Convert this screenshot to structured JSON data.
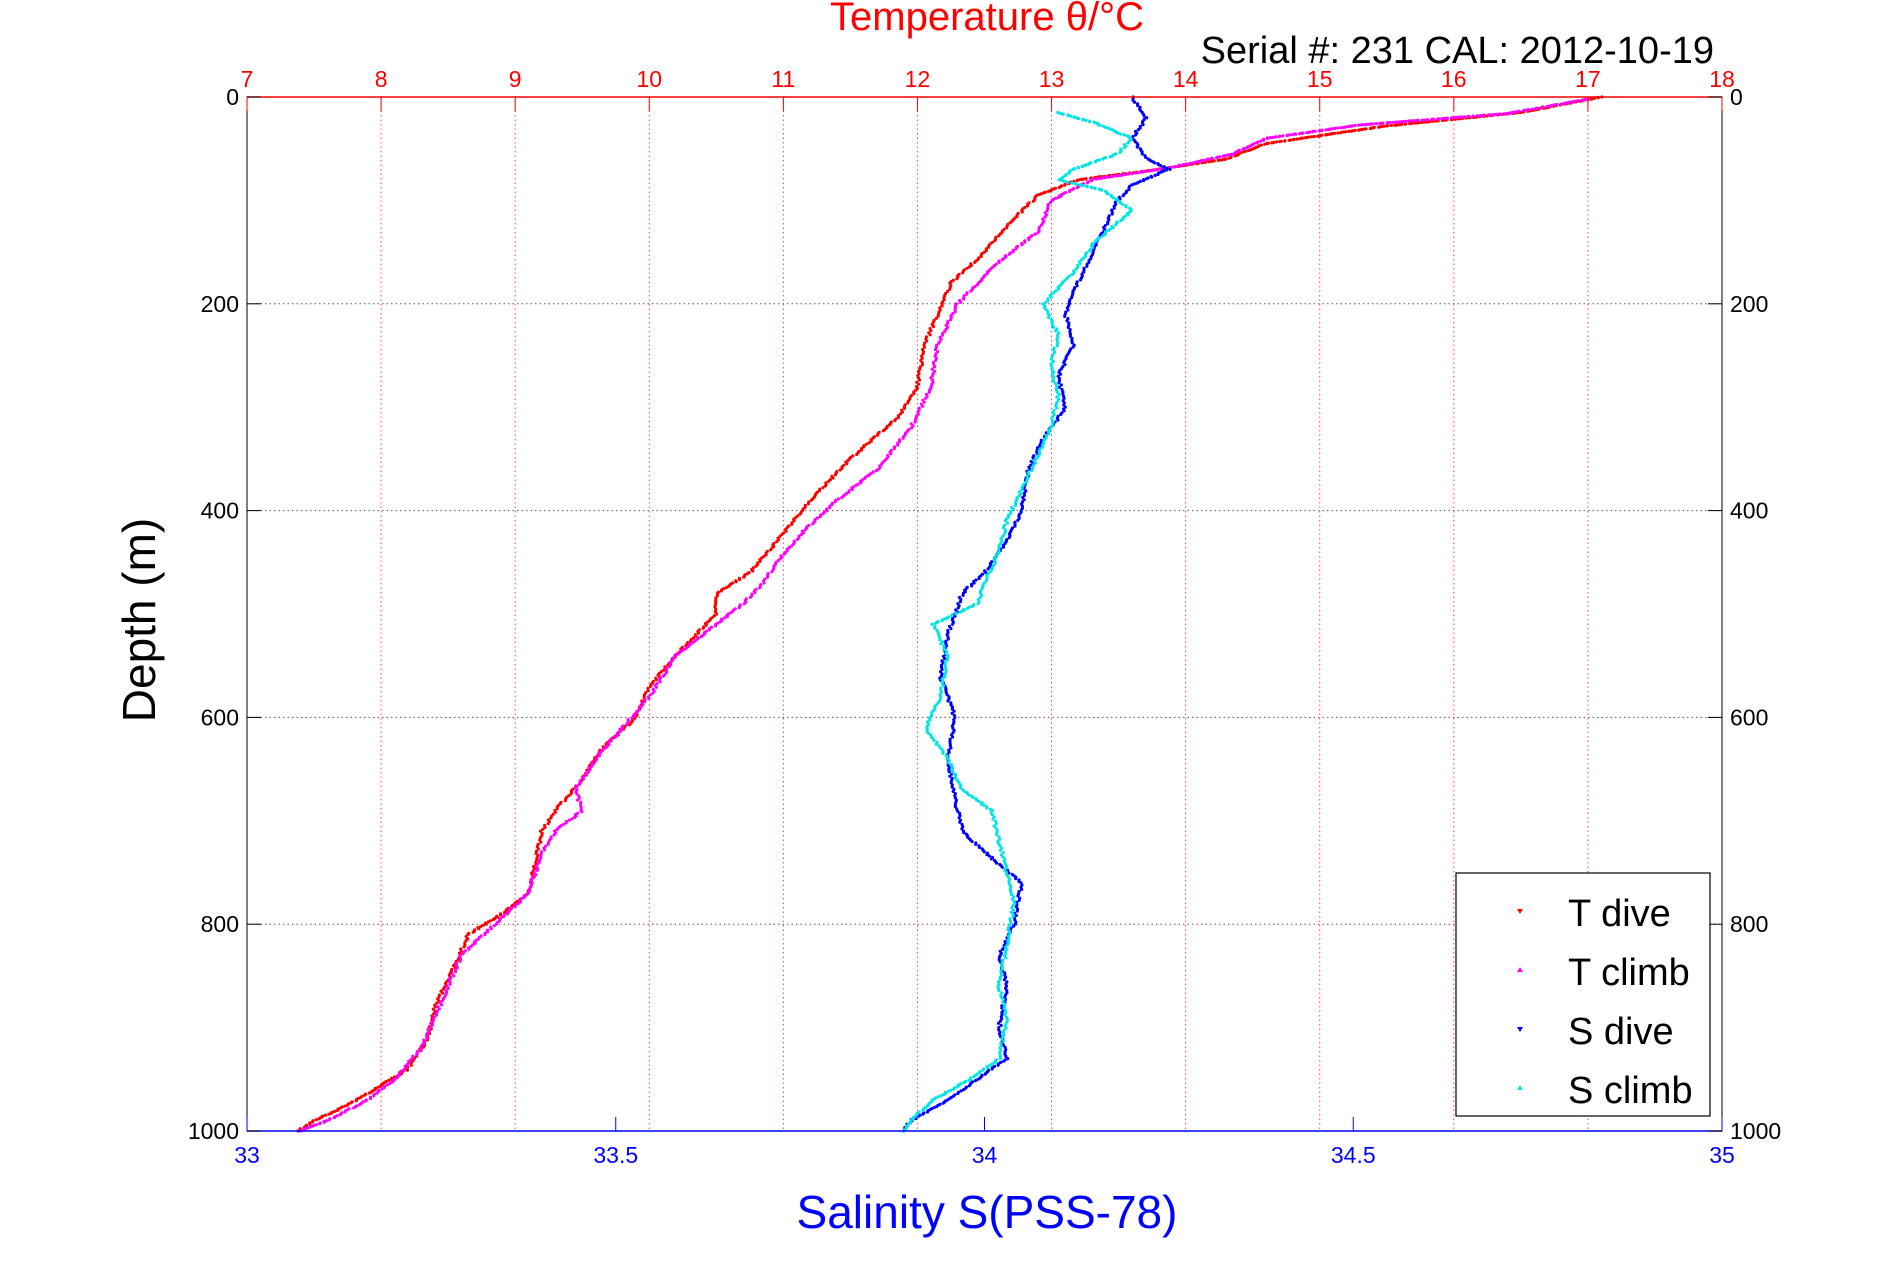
{
  "chart_data": {
    "type": "scatter",
    "title": "Temperature θ/°C",
    "subtitle": "Serial #: 231  CAL: 2012-10-19",
    "xlabel": "Salinity S(PSS-78)",
    "ylabel": "Depth (m)",
    "x_top_label": "Temperature θ/°C",
    "xlim": [
      33,
      35
    ],
    "xlim_top": [
      7,
      18
    ],
    "ylim": [
      1000,
      0
    ],
    "y_reversed": true,
    "grid": true,
    "legend_position": "bottom-right",
    "x_ticks": [
      "33",
      "33.5",
      "34",
      "34.5",
      "35"
    ],
    "x_top_ticks": [
      "7",
      "8",
      "9",
      "10",
      "11",
      "12",
      "13",
      "14",
      "15",
      "16",
      "17",
      "18"
    ],
    "y_ticks": [
      "0",
      "200",
      "400",
      "600",
      "800",
      "1000"
    ],
    "colors": {
      "temperature_axis": "#ff0000",
      "salinity_axis": "#0000ff",
      "t_dive": "#ff0000",
      "t_climb": "#ff00ff",
      "s_dive": "#0000ff",
      "s_climb": "#00e5e5"
    },
    "series": [
      {
        "name": "T dive",
        "axis": "temperature",
        "color": "#ff0000",
        "points": [
          [
            17.1,
            0
          ],
          [
            16.5,
            15
          ],
          [
            15.5,
            28
          ],
          [
            14.6,
            45
          ],
          [
            14.3,
            60
          ],
          [
            13.8,
            70
          ],
          [
            13.2,
            80
          ],
          [
            12.9,
            95
          ],
          [
            12.7,
            120
          ],
          [
            12.5,
            150
          ],
          [
            12.25,
            180
          ],
          [
            12.15,
            210
          ],
          [
            12.05,
            240
          ],
          [
            12.0,
            280
          ],
          [
            11.85,
            310
          ],
          [
            11.5,
            350
          ],
          [
            11.2,
            390
          ],
          [
            10.95,
            430
          ],
          [
            10.75,
            460
          ],
          [
            10.5,
            480
          ],
          [
            10.5,
            500
          ],
          [
            10.2,
            540
          ],
          [
            10.0,
            570
          ],
          [
            9.9,
            600
          ],
          [
            9.65,
            630
          ],
          [
            9.5,
            660
          ],
          [
            9.3,
            690
          ],
          [
            9.2,
            710
          ],
          [
            9.15,
            740
          ],
          [
            9.1,
            770
          ],
          [
            8.9,
            790
          ],
          [
            8.65,
            810
          ],
          [
            8.55,
            840
          ],
          [
            8.4,
            880
          ],
          [
            8.35,
            910
          ],
          [
            8.2,
            940
          ],
          [
            7.95,
            960
          ],
          [
            7.75,
            975
          ],
          [
            7.5,
            990
          ],
          [
            7.38,
            1000
          ]
        ]
      },
      {
        "name": "T climb",
        "axis": "temperature",
        "color": "#ff00ff",
        "points": [
          [
            17.0,
            2
          ],
          [
            16.4,
            16
          ],
          [
            15.3,
            27
          ],
          [
            14.6,
            40
          ],
          [
            14.35,
            55
          ],
          [
            13.9,
            68
          ],
          [
            13.3,
            80
          ],
          [
            13.0,
            100
          ],
          [
            12.9,
            130
          ],
          [
            12.6,
            160
          ],
          [
            12.3,
            200
          ],
          [
            12.15,
            240
          ],
          [
            12.1,
            280
          ],
          [
            11.95,
            320
          ],
          [
            11.7,
            360
          ],
          [
            11.4,
            390
          ],
          [
            11.15,
            420
          ],
          [
            10.95,
            450
          ],
          [
            10.85,
            470
          ],
          [
            10.7,
            490
          ],
          [
            10.55,
            505
          ],
          [
            10.2,
            540
          ],
          [
            10.0,
            580
          ],
          [
            9.8,
            610
          ],
          [
            9.6,
            640
          ],
          [
            9.45,
            670
          ],
          [
            9.5,
            690
          ],
          [
            9.3,
            710
          ],
          [
            9.2,
            730
          ],
          [
            9.1,
            770
          ],
          [
            8.85,
            800
          ],
          [
            8.6,
            830
          ],
          [
            8.5,
            860
          ],
          [
            8.4,
            890
          ],
          [
            8.3,
            920
          ],
          [
            8.1,
            950
          ],
          [
            7.9,
            970
          ],
          [
            7.6,
            990
          ],
          [
            7.4,
            1000
          ]
        ]
      },
      {
        "name": "S dive",
        "axis": "salinity",
        "color": "#0000ff",
        "points": [
          [
            34.2,
            0
          ],
          [
            34.22,
            20
          ],
          [
            34.2,
            40
          ],
          [
            34.22,
            60
          ],
          [
            34.25,
            70
          ],
          [
            34.2,
            85
          ],
          [
            34.18,
            100
          ],
          [
            34.16,
            130
          ],
          [
            34.14,
            160
          ],
          [
            34.12,
            190
          ],
          [
            34.11,
            210
          ],
          [
            34.12,
            240
          ],
          [
            34.1,
            270
          ],
          [
            34.11,
            300
          ],
          [
            34.08,
            330
          ],
          [
            34.06,
            360
          ],
          [
            34.05,
            400
          ],
          [
            34.03,
            430
          ],
          [
            34.0,
            460
          ],
          [
            33.97,
            480
          ],
          [
            33.96,
            500
          ],
          [
            33.95,
            520
          ],
          [
            33.94,
            560
          ],
          [
            33.96,
            600
          ],
          [
            33.95,
            640
          ],
          [
            33.96,
            680
          ],
          [
            33.97,
            710
          ],
          [
            34.0,
            730
          ],
          [
            34.05,
            760
          ],
          [
            34.04,
            800
          ],
          [
            34.02,
            830
          ],
          [
            34.03,
            860
          ],
          [
            34.02,
            900
          ],
          [
            34.03,
            930
          ],
          [
            33.99,
            950
          ],
          [
            33.95,
            970
          ],
          [
            33.9,
            990
          ],
          [
            33.89,
            1000
          ]
        ]
      },
      {
        "name": "S climb",
        "axis": "salinity",
        "color": "#00e5e5",
        "points": [
          [
            34.1,
            15
          ],
          [
            34.15,
            25
          ],
          [
            34.2,
            40
          ],
          [
            34.18,
            55
          ],
          [
            34.12,
            70
          ],
          [
            34.1,
            80
          ],
          [
            34.16,
            90
          ],
          [
            34.2,
            110
          ],
          [
            34.15,
            140
          ],
          [
            34.12,
            170
          ],
          [
            34.08,
            200
          ],
          [
            34.1,
            230
          ],
          [
            34.09,
            260
          ],
          [
            34.1,
            290
          ],
          [
            34.09,
            320
          ],
          [
            34.07,
            350
          ],
          [
            34.05,
            380
          ],
          [
            34.03,
            410
          ],
          [
            34.02,
            440
          ],
          [
            34.0,
            470
          ],
          [
            33.99,
            490
          ],
          [
            33.93,
            510
          ],
          [
            33.95,
            540
          ],
          [
            33.94,
            580
          ],
          [
            33.92,
            610
          ],
          [
            33.95,
            640
          ],
          [
            33.97,
            670
          ],
          [
            34.01,
            690
          ],
          [
            34.02,
            720
          ],
          [
            34.03,
            750
          ],
          [
            34.04,
            780
          ],
          [
            34.03,
            820
          ],
          [
            34.02,
            860
          ],
          [
            34.03,
            890
          ],
          [
            34.02,
            930
          ],
          [
            33.98,
            950
          ],
          [
            33.93,
            970
          ],
          [
            33.9,
            990
          ],
          [
            33.89,
            1000
          ]
        ]
      }
    ]
  }
}
